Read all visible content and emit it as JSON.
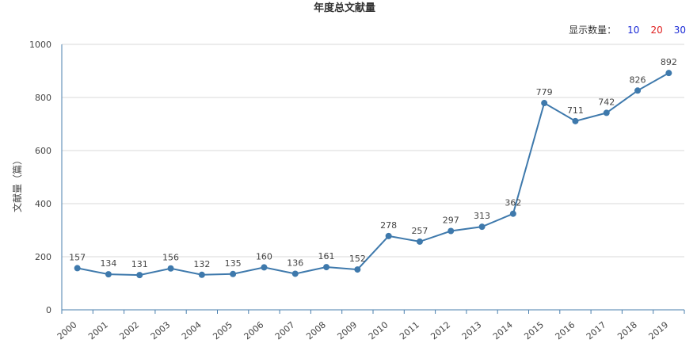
{
  "page": {
    "count_selector_label": "显示数量：",
    "count_options": [
      "10",
      "20",
      "30"
    ]
  },
  "colors": {
    "line": "#3e79ac",
    "grid": "#d9d9d9",
    "axis": "#4a7fae",
    "option_blue": "#1a2ad6",
    "option_red": "#e02020"
  },
  "chart_data": {
    "type": "line",
    "title": "年度总文献量",
    "xlabel": "",
    "ylabel": "文献量（篇）",
    "ylim": [
      0,
      1000
    ],
    "yticks": [
      0,
      200,
      400,
      600,
      800,
      1000
    ],
    "grid": true,
    "categories": [
      "2000",
      "2001",
      "2002",
      "2003",
      "2004",
      "2005",
      "2006",
      "2007",
      "2008",
      "2009",
      "2010",
      "2011",
      "2012",
      "2013",
      "2014",
      "2015",
      "2016",
      "2017",
      "2018",
      "2019"
    ],
    "values": [
      157,
      134,
      131,
      156,
      132,
      135,
      160,
      136,
      161,
      152,
      278,
      257,
      297,
      313,
      362,
      779,
      711,
      742,
      826,
      892
    ]
  }
}
